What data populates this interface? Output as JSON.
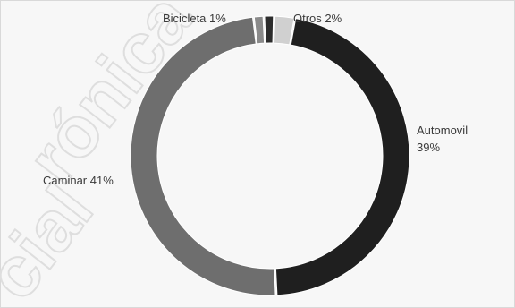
{
  "chart_data": {
    "type": "pie",
    "style": "donut",
    "slices": [
      {
        "label": "Otros",
        "value_label": "2%",
        "value": 2,
        "color": "#d0d0d0"
      },
      {
        "label": "Automovil",
        "value_label": "39%",
        "value": 39,
        "color": "#1f1f1f"
      },
      {
        "label": "Caminar",
        "value_label": "41%",
        "value": 41,
        "color": "#6e6e6e"
      },
      {
        "label": "Bicicleta",
        "value_label": "1%",
        "value": 1,
        "color": "#8a8a8a"
      },
      {
        "label": "",
        "value_label": "",
        "value": 1,
        "color": "#2c2c2c"
      }
    ],
    "labels": {
      "bicicleta": "Bicicleta 1%",
      "otros": "Otros 2%",
      "automovil_name": "Automovil",
      "automovil_pct": "39%",
      "caminar": "Caminar 41%"
    }
  },
  "watermark": {
    "lines": [
      "rónica",
      "cial"
    ],
    "color": "#e3e3e3"
  }
}
